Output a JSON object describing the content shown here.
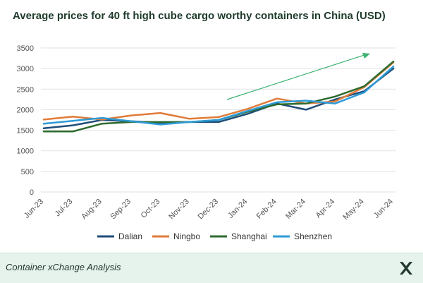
{
  "chart_data": {
    "type": "line",
    "title": "Average prices for 40 ft high cube cargo worthy containers in China (USD)",
    "categories": [
      "Jun-23",
      "Jul-23",
      "Aug-23",
      "Sep-23",
      "Oct-23",
      "Nov-23",
      "Dec-23",
      "Jan-24",
      "Feb-24",
      "Mar-24",
      "Apr-24",
      "May-24",
      "Jun-24"
    ],
    "ylim": [
      0,
      3500
    ],
    "yticks": [
      0,
      500,
      1000,
      1500,
      2000,
      2500,
      3000,
      3500
    ],
    "grid": true,
    "legend_position": "bottom",
    "annotations": [
      "trend-arrow"
    ],
    "series": [
      {
        "name": "Dalian",
        "color": "#1f4e79",
        "values": [
          1550,
          1620,
          1750,
          1720,
          1680,
          1700,
          1700,
          1900,
          2150,
          2000,
          2250,
          2450,
          3000
        ]
      },
      {
        "name": "Ningbo",
        "color": "#e07b39",
        "values": [
          1760,
          1830,
          1760,
          1860,
          1920,
          1780,
          1820,
          2020,
          2270,
          2150,
          2200,
          2550,
          3150
        ]
      },
      {
        "name": "Shanghai",
        "color": "#2e6b2e",
        "values": [
          1470,
          1470,
          1660,
          1700,
          1700,
          1700,
          1750,
          1950,
          2130,
          2150,
          2320,
          2570,
          3170
        ]
      },
      {
        "name": "Shenzhen",
        "color": "#2e9bd6",
        "values": [
          1660,
          1730,
          1800,
          1720,
          1640,
          1700,
          1750,
          1970,
          2180,
          2220,
          2150,
          2420,
          3050
        ]
      }
    ]
  },
  "footer": {
    "text": "Container xChange Analysis",
    "logo_icon": "xchange-x-logo-icon"
  },
  "colors": {
    "footer_bg": "#e6f2ec",
    "trend_arrow": "#3cb371",
    "grid": "#e2e2e2"
  }
}
